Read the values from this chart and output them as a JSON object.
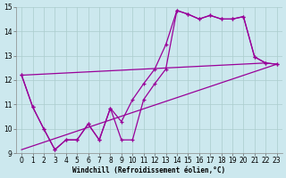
{
  "xlabel": "Windchill (Refroidissement éolien,°C)",
  "bg_color": "#cce8ee",
  "grid_color": "#aacccc",
  "line_color": "#990099",
  "xlim": [
    -0.5,
    23.5
  ],
  "ylim": [
    9,
    15
  ],
  "xticks": [
    0,
    1,
    2,
    3,
    4,
    5,
    6,
    7,
    8,
    9,
    10,
    11,
    12,
    13,
    14,
    15,
    16,
    17,
    18,
    19,
    20,
    21,
    22,
    23
  ],
  "yticks": [
    9,
    10,
    11,
    12,
    13,
    14,
    15
  ],
  "line1_x": [
    0,
    1,
    2,
    3,
    4,
    5,
    6,
    7,
    8,
    9,
    10,
    11,
    12,
    13,
    14,
    15,
    16,
    17,
    18,
    19,
    20,
    21,
    22,
    23
  ],
  "line1_y": [
    12.2,
    10.9,
    10.0,
    9.15,
    9.55,
    9.55,
    10.2,
    9.55,
    10.85,
    9.55,
    9.55,
    11.2,
    11.85,
    12.45,
    14.85,
    14.7,
    14.5,
    14.65,
    14.5,
    14.5,
    14.6,
    12.95,
    12.7,
    12.65
  ],
  "line2_x": [
    0,
    1,
    2,
    3,
    4,
    5,
    6,
    7,
    8,
    9,
    10,
    11,
    12,
    13,
    14,
    15,
    16,
    17,
    18,
    19,
    20,
    21,
    22,
    23
  ],
  "line2_y": [
    12.2,
    10.9,
    10.0,
    9.15,
    9.55,
    9.55,
    10.2,
    9.55,
    10.85,
    10.3,
    11.2,
    11.85,
    12.45,
    13.45,
    14.85,
    14.7,
    14.5,
    14.65,
    14.5,
    14.5,
    14.6,
    12.95,
    12.7,
    12.65
  ],
  "upper_line_x": [
    0,
    22
  ],
  "upper_line_y": [
    12.2,
    12.7
  ],
  "lower_line_x": [
    0,
    23
  ],
  "lower_line_y": [
    9.15,
    12.65
  ],
  "fontsize_axis": 5.5,
  "fontsize_tick": 5.5
}
